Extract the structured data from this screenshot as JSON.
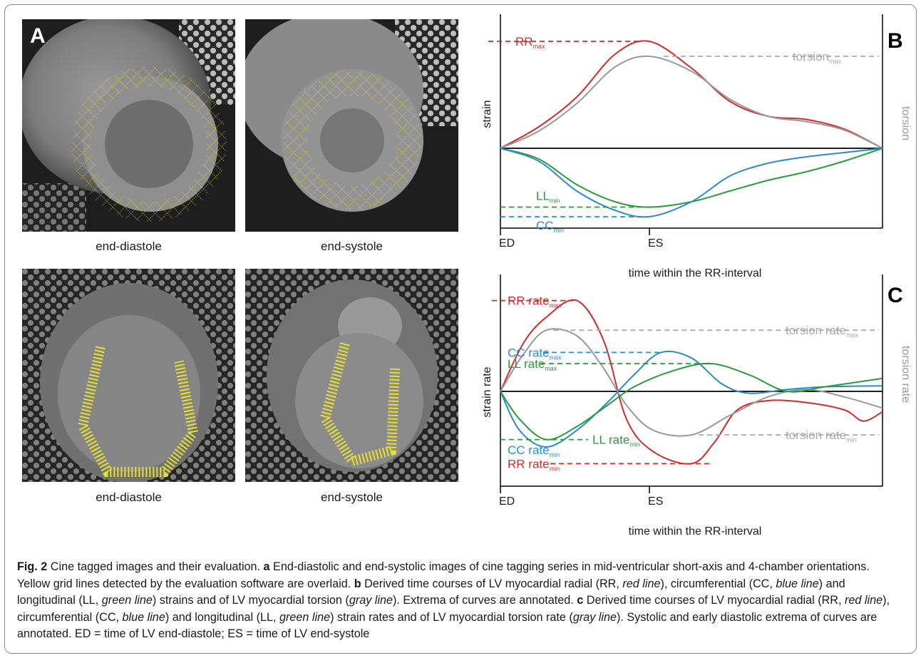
{
  "panel_a": {
    "letter": "A",
    "images": [
      {
        "caption": "end-diastole",
        "view": "short-axis"
      },
      {
        "caption": "end-systole",
        "view": "short-axis"
      },
      {
        "caption": "end-diastole",
        "view": "4-chamber"
      },
      {
        "caption": "end-systole",
        "view": "4-chamber"
      }
    ],
    "colors": {
      "grid": "#e8e030"
    }
  },
  "chart_data": [
    {
      "type": "line",
      "panel": "B",
      "xlabel": "time within the RR-interval",
      "ylabel": "strain",
      "ylabel_right": "torsion",
      "x_ticks": [
        "ED",
        "ES"
      ],
      "annotations": [
        {
          "base": "RR",
          "sub": "max",
          "color": "#d42a2a"
        },
        {
          "base": "torsion",
          "sub": "max",
          "color": "#aaaaaa"
        },
        {
          "base": "LL",
          "sub": "min",
          "color": "#2a9a3a"
        },
        {
          "base": "CC",
          "sub": "min",
          "color": "#2a8ad4"
        }
      ],
      "series": [
        {
          "key": "RR",
          "color": "#d42a2a",
          "x": [
            0,
            0.1,
            0.2,
            0.3,
            0.39,
            0.5,
            0.6,
            0.7,
            0.8,
            0.9,
            1.0
          ],
          "values": [
            0,
            0.2,
            0.48,
            0.88,
            1.0,
            0.75,
            0.44,
            0.3,
            0.27,
            0.18,
            0
          ]
        },
        {
          "key": "torsion",
          "color": "#999999",
          "x": [
            0,
            0.1,
            0.2,
            0.3,
            0.39,
            0.5,
            0.6,
            0.7,
            0.8,
            0.9,
            1.0
          ],
          "values": [
            0,
            0.16,
            0.42,
            0.76,
            0.86,
            0.72,
            0.46,
            0.3,
            0.25,
            0.17,
            0
          ]
        },
        {
          "key": "LL",
          "color": "#2a9a3a",
          "x": [
            0,
            0.1,
            0.2,
            0.3,
            0.39,
            0.5,
            0.6,
            0.7,
            0.8,
            0.9,
            1.0
          ],
          "values": [
            0,
            -0.1,
            -0.34,
            -0.5,
            -0.55,
            -0.5,
            -0.4,
            -0.3,
            -0.22,
            -0.12,
            0
          ]
        },
        {
          "key": "CC",
          "color": "#2a8ad4",
          "x": [
            0,
            0.1,
            0.2,
            0.3,
            0.39,
            0.5,
            0.6,
            0.7,
            0.8,
            0.9,
            1.0
          ],
          "values": [
            0,
            -0.12,
            -0.4,
            -0.58,
            -0.64,
            -0.5,
            -0.26,
            -0.14,
            -0.08,
            -0.04,
            0
          ]
        }
      ]
    },
    {
      "type": "line",
      "panel": "C",
      "xlabel": "time within the RR-interval",
      "ylabel": "strain rate",
      "ylabel_right": "torsion rate",
      "x_ticks": [
        "ED",
        "ES"
      ],
      "annotations": [
        {
          "base": "RR rate",
          "sub": "max",
          "color": "#d42a2a"
        },
        {
          "base": "torsion rate",
          "sub": "max",
          "color": "#aaaaaa"
        },
        {
          "base": "CC rate",
          "sub": "max",
          "color": "#2a8ad4"
        },
        {
          "base": "LL rate",
          "sub": "max",
          "color": "#2a9a3a"
        },
        {
          "base": "LL rate",
          "sub": "min",
          "color": "#2a9a3a"
        },
        {
          "base": "torsion rate",
          "sub": "min",
          "color": "#aaaaaa"
        },
        {
          "base": "CC rate",
          "sub": "min",
          "color": "#2a8ad4"
        },
        {
          "base": "RR rate",
          "sub": "min",
          "color": "#d42a2a"
        }
      ],
      "series": [
        {
          "key": "RR rate",
          "color": "#d42a2a",
          "x": [
            0,
            0.06,
            0.12,
            0.2,
            0.27,
            0.33,
            0.4,
            0.5,
            0.56,
            0.62,
            0.7,
            0.8,
            0.9,
            0.95,
            1.0
          ],
          "values": [
            0,
            0.52,
            0.8,
            0.98,
            0.55,
            -0.3,
            -0.65,
            -0.78,
            -0.55,
            -0.2,
            -0.1,
            -0.12,
            -0.2,
            -0.32,
            -0.22
          ]
        },
        {
          "key": "torsion rate",
          "color": "#999999",
          "x": [
            0,
            0.06,
            0.12,
            0.2,
            0.27,
            0.33,
            0.4,
            0.5,
            0.6,
            0.7,
            0.8,
            0.9,
            1.0
          ],
          "values": [
            0,
            0.4,
            0.66,
            0.6,
            0.25,
            -0.15,
            -0.42,
            -0.47,
            -0.26,
            -0.06,
            0.02,
            -0.06,
            -0.18
          ]
        },
        {
          "key": "CC rate",
          "color": "#2a8ad4",
          "x": [
            0,
            0.05,
            0.12,
            0.2,
            0.28,
            0.35,
            0.42,
            0.5,
            0.58,
            0.65,
            0.75,
            0.85,
            1.0
          ],
          "values": [
            0,
            -0.42,
            -0.6,
            -0.42,
            -0.12,
            0.18,
            0.42,
            0.36,
            0.08,
            -0.02,
            0.02,
            0.05,
            0.06
          ]
        },
        {
          "key": "LL rate",
          "color": "#2a9a3a",
          "x": [
            0,
            0.05,
            0.12,
            0.2,
            0.28,
            0.35,
            0.45,
            0.55,
            0.65,
            0.75,
            0.85,
            1.0
          ],
          "values": [
            0,
            -0.3,
            -0.52,
            -0.38,
            -0.15,
            0.05,
            0.22,
            0.3,
            0.18,
            0.0,
            0.05,
            0.14
          ]
        }
      ]
    }
  ],
  "panel_c_letter": "C",
  "panel_b_letter": "B",
  "caption": {
    "fig_label": "Fig. 2",
    "title": " Cine tagged images and their evaluation. ",
    "a_label": "a",
    "a_text": " End-diastolic and end-systolic images of cine tagging series in mid-ventricular short-axis and 4-chamber orientations. Yellow grid lines detected by the evaluation software are overlaid. ",
    "b_label": "b",
    "b_text_1": " Derived time courses of LV myocardial radial (RR, ",
    "red_line": "red line",
    "b_text_2": "), circumferential (CC, ",
    "blue_line": "blue line",
    "b_text_3": ") and longitudinal (LL, ",
    "green_line": "green line",
    "b_text_4": ") strains and of LV myocardial torsion (",
    "gray_line": "gray line",
    "b_text_5": "). Extrema of curves are annotated. ",
    "c_label": "c",
    "c_text_1": " Derived time courses of LV myocardial radial (RR, ",
    "c_text_2": "), circumferential (CC, ",
    "c_text_3": ") and longitudinal (LL, ",
    "c_text_4": ") strain rates and of LV myocardial torsion rate (",
    "c_text_5": "). Systolic and early diastolic extrema of curves are annotated. ED = time of LV end-diastole; ES = time of LV end-systole"
  }
}
